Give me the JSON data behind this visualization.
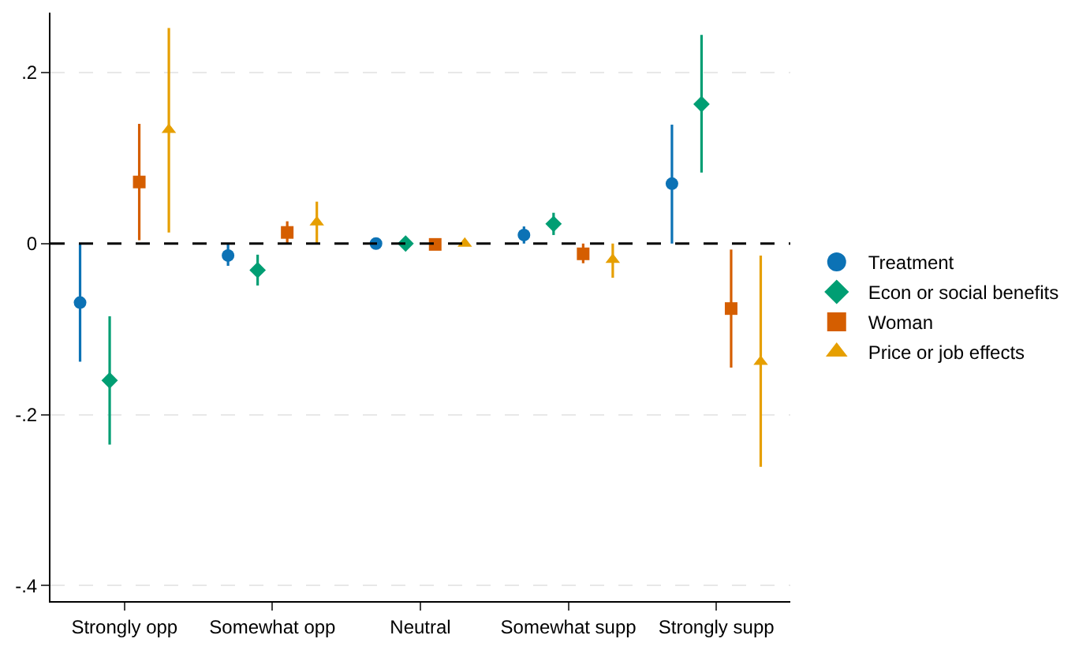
{
  "chart_data": {
    "type": "scatter",
    "categories": [
      "Strongly opp",
      "Somewhat opp",
      "Neutral",
      "Somewhat supp",
      "Strongly supp"
    ],
    "series": [
      {
        "name": "Treatment",
        "color": "#0c72b5",
        "marker": "circle",
        "values": [
          -0.069,
          -0.014,
          0.0,
          0.01,
          0.07
        ],
        "errors": [
          [
            -0.138,
            0.0
          ],
          [
            -0.026,
            0.0
          ],
          null,
          [
            0.0,
            0.02
          ],
          [
            0.0,
            0.139
          ]
        ]
      },
      {
        "name": "Econ or social benefits",
        "color": "#009e73",
        "marker": "diamond",
        "values": [
          -0.16,
          -0.031,
          0.0,
          0.023,
          0.163
        ],
        "errors": [
          [
            -0.235,
            -0.085
          ],
          [
            -0.049,
            -0.013
          ],
          null,
          [
            0.01,
            0.036
          ],
          [
            0.083,
            0.244
          ]
        ]
      },
      {
        "name": "Woman",
        "color": "#d55e00",
        "marker": "square",
        "values": [
          0.072,
          0.013,
          -0.001,
          -0.012,
          -0.076
        ],
        "errors": [
          [
            0.004,
            0.14
          ],
          [
            0.0,
            0.026
          ],
          null,
          [
            -0.023,
            0.0
          ],
          [
            -0.145,
            -0.007
          ]
        ]
      },
      {
        "name": "Price or job effects",
        "color": "#e69f00",
        "marker": "triangle",
        "values": [
          0.133,
          0.025,
          0.0,
          -0.019,
          -0.138
        ],
        "errors": [
          [
            0.013,
            0.252
          ],
          [
            0.0,
            0.049
          ],
          null,
          [
            -0.04,
            0.0
          ],
          [
            -0.261,
            -0.014
          ]
        ]
      }
    ],
    "ylim": [
      -0.418,
      0.27
    ],
    "yticks": [
      {
        "value": 0.2,
        "label": ".2"
      },
      0,
      {
        "value": -0.2,
        "label": "-.2"
      },
      {
        "value": -0.4,
        "label": "-.4"
      }
    ],
    "grid": "y",
    "legend": "right",
    "ref_lines": [
      {
        "axis": "y",
        "value": 0,
        "color": "#000000",
        "line_style": "dashed"
      }
    ]
  }
}
